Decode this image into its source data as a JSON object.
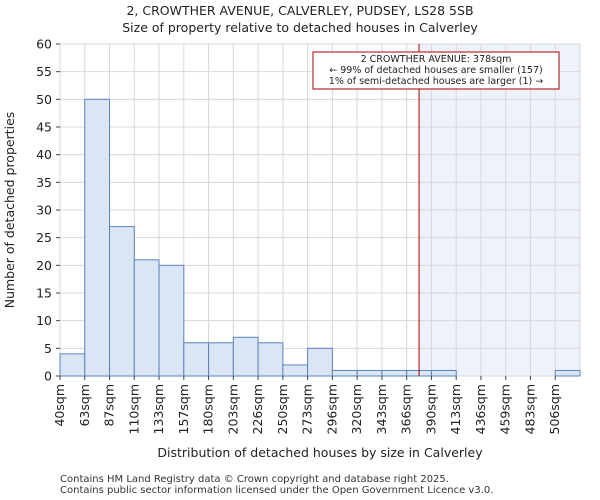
{
  "title": "2, CROWTHER AVENUE, CALVERLEY, PUDSEY, LS28 5SB",
  "subtitle": "Size of property relative to detached houses in Calverley",
  "footer": {
    "line1": "Contains HM Land Registry data © Crown copyright and database right 2025.",
    "line2": "Contains public sector information licensed under the Open Government Licence v3.0."
  },
  "colors": {
    "bar_fill": "#dbe6f4",
    "bar_stroke": "#5b82c0",
    "marker": "#aa0000",
    "highlight": "#eef2fa"
  },
  "chart_data": {
    "type": "bar",
    "xlabel": "Distribution of detached houses by size in Calverley",
    "ylabel": "Number of detached properties",
    "ylim": [
      0,
      60
    ],
    "yticks": [
      0,
      5,
      10,
      15,
      20,
      25,
      30,
      35,
      40,
      45,
      50,
      55,
      60
    ],
    "bin_labels": [
      "40sqm",
      "63sqm",
      "87sqm",
      "110sqm",
      "133sqm",
      "157sqm",
      "180sqm",
      "203sqm",
      "226sqm",
      "250sqm",
      "273sqm",
      "296sqm",
      "320sqm",
      "343sqm",
      "366sqm",
      "390sqm",
      "413sqm",
      "436sqm",
      "459sqm",
      "483sqm",
      "506sqm"
    ],
    "values": [
      4,
      50,
      27,
      21,
      20,
      6,
      6,
      7,
      6,
      2,
      5,
      1,
      1,
      1,
      1,
      1,
      0,
      0,
      0,
      0,
      1
    ],
    "grid": true,
    "marker": {
      "x": 378,
      "unit": "sqm",
      "lines": [
        "2 CROWTHER AVENUE: 378sqm",
        "← 99% of detached houses are smaller (157)",
        "1% of semi-detached houses are larger (1) →"
      ]
    }
  }
}
